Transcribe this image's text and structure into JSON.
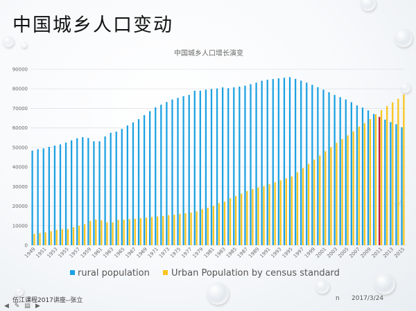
{
  "slide": {
    "title": "中国城乡人口变动",
    "footer_left": "伍江课程2017讲座--张立",
    "footer_marker": "n",
    "footer_date": "2017/3/24"
  },
  "nav": {
    "prev_label": "◀",
    "pen_label": "✎",
    "menu_label": "▤",
    "next_label": "▶"
  },
  "colors": {
    "rural": "#1ba1e2",
    "urban": "#f8c51c",
    "highlight": "#c0152f",
    "grid": "#dfe3e6",
    "text": "#666666"
  },
  "chart_data": {
    "type": "bar",
    "title": "中国城乡人口增长演变",
    "xlabel": "",
    "ylabel": "",
    "ylim": [
      0,
      90000
    ],
    "y_ticks": [
      0,
      10000,
      20000,
      30000,
      40000,
      50000,
      60000,
      70000,
      80000,
      90000
    ],
    "x_tick_labels": [
      "1949",
      "1951",
      "1953",
      "1955",
      "1957",
      "1959",
      "1961",
      "1963",
      "1965",
      "1967",
      "1969",
      "1971",
      "1973",
      "1975",
      "1977",
      "1979",
      "1981",
      "1983",
      "1985",
      "1987",
      "1989",
      "1991",
      "1993",
      "1995",
      "1997",
      "1999",
      "2001",
      "2003",
      "2005",
      "2007",
      "2009",
      "2011",
      "2013",
      "2015"
    ],
    "grid": true,
    "legend_position": "bottom",
    "highlight_year": 2011,
    "highlight_color": "#c0152f",
    "categories": [
      1949,
      1950,
      1951,
      1952,
      1953,
      1954,
      1955,
      1956,
      1957,
      1958,
      1959,
      1960,
      1961,
      1962,
      1963,
      1964,
      1965,
      1966,
      1967,
      1968,
      1969,
      1970,
      1971,
      1972,
      1973,
      1974,
      1975,
      1976,
      1977,
      1978,
      1979,
      1980,
      1981,
      1982,
      1983,
      1984,
      1985,
      1986,
      1987,
      1988,
      1989,
      1990,
      1991,
      1992,
      1993,
      1994,
      1995,
      1996,
      1997,
      1998,
      1999,
      2000,
      2001,
      2002,
      2003,
      2004,
      2005,
      2006,
      2007,
      2008,
      2009,
      2010,
      2011,
      2012,
      2013,
      2014,
      2015
    ],
    "series": [
      {
        "name": "rural population",
        "color": "#1ba1e2",
        "values": [
          48402,
          49085,
          49500,
          50319,
          50970,
          51578,
          52511,
          53643,
          54704,
          55273,
          54836,
          53134,
          53152,
          55636,
          57526,
          58126,
          59493,
          61229,
          62820,
          64491,
          66554,
          68568,
          70518,
          71854,
          73280,
          74544,
          75390,
          76257,
          76854,
          79014,
          79047,
          79565,
          79901,
          80174,
          80734,
          80340,
          80757,
          81141,
          81626,
          82365,
          83164,
          84138,
          84620,
          84996,
          85344,
          85681,
          85947,
          85085,
          84177,
          83153,
          82038,
          80837,
          79563,
          78241,
          76851,
          75705,
          74544,
          73160,
          71496,
          70399,
          68938,
          67113,
          65656,
          64222,
          62961,
          61866,
          60346
        ]
      },
      {
        "name": "Urban Population by census standard",
        "color": "#f8c51c",
        "values": [
          5765,
          6169,
          6632,
          7163,
          7826,
          8249,
          8285,
          9185,
          9949,
          10721,
          12371,
          13073,
          12707,
          11659,
          11646,
          12950,
          13045,
          13313,
          13548,
          13838,
          14117,
          14424,
          14711,
          14935,
          15345,
          15595,
          16030,
          16341,
          16669,
          17245,
          18495,
          19140,
          20171,
          21480,
          22274,
          24017,
          25094,
          26366,
          27674,
          28661,
          29540,
          30195,
          31203,
          32175,
          33173,
          34169,
          35174,
          37304,
          39449,
          41608,
          43748,
          45906,
          48064,
          50212,
          52376,
          54283,
          56212,
          58288,
          60633,
          62403,
          64512,
          66978,
          69079,
          71182,
          73111,
          74916,
          77116
        ]
      }
    ]
  }
}
